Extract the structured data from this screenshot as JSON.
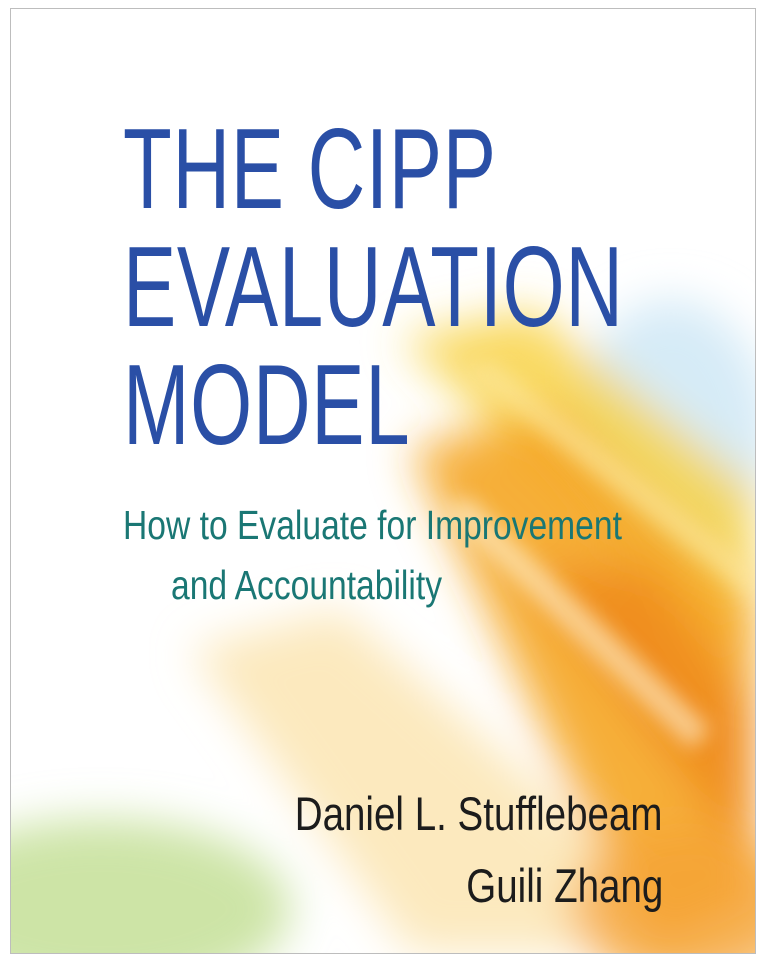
{
  "cover": {
    "title_lines": [
      "THE CIPP",
      "EVALUATION",
      "MODEL"
    ],
    "subtitle_lines": [
      "How to Evaluate for Improvement",
      "and Accountability"
    ],
    "authors": [
      "Daniel L. Stufflebeam",
      "Guili Zhang"
    ]
  },
  "colors": {
    "title": "#2a4fa6",
    "subtitle": "#1a7774",
    "authors": "#1c1c1c",
    "accent_orange": "#f39a1e",
    "accent_yellow": "#f7d23a",
    "accent_green": "#b8d98a",
    "accent_blue": "#cfe6f5"
  }
}
